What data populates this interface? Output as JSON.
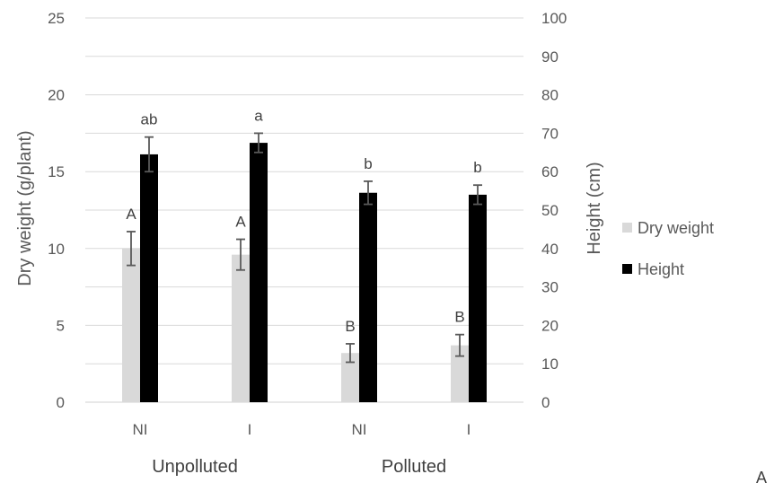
{
  "chart_data": {
    "type": "bar",
    "categories": [
      "NI",
      "I",
      "NI",
      "I"
    ],
    "groups": [
      {
        "label": "Unpolluted",
        "categories": [
          0,
          1
        ]
      },
      {
        "label": "Polluted",
        "categories": [
          2,
          3
        ]
      }
    ],
    "ylabel": "Dry weight (g/plant)",
    "y2label": "Height (cm)",
    "ylim": [
      0,
      25
    ],
    "yticks": [
      0,
      5,
      10,
      15,
      20,
      25
    ],
    "y2lim": [
      0,
      100
    ],
    "y2ticks": [
      0,
      10,
      20,
      30,
      40,
      50,
      60,
      70,
      80,
      90,
      100
    ],
    "grid": true,
    "legend_position": "right",
    "series": [
      {
        "name": "Dry weight",
        "axis": "left",
        "color": "#d9d9d9",
        "values": [
          10.0,
          9.6,
          3.2,
          3.7
        ],
        "errors": [
          1.1,
          1.0,
          0.6,
          0.7
        ],
        "labels": [
          "A",
          "A",
          "B",
          "B"
        ]
      },
      {
        "name": "Height",
        "axis": "right",
        "color": "#000000",
        "values": [
          64.5,
          67.5,
          54.5,
          54.0
        ],
        "errors": [
          4.5,
          2.5,
          3.0,
          2.5
        ],
        "labels": [
          "ab",
          "a",
          "b",
          "b"
        ]
      }
    ],
    "corner_label": "A"
  }
}
